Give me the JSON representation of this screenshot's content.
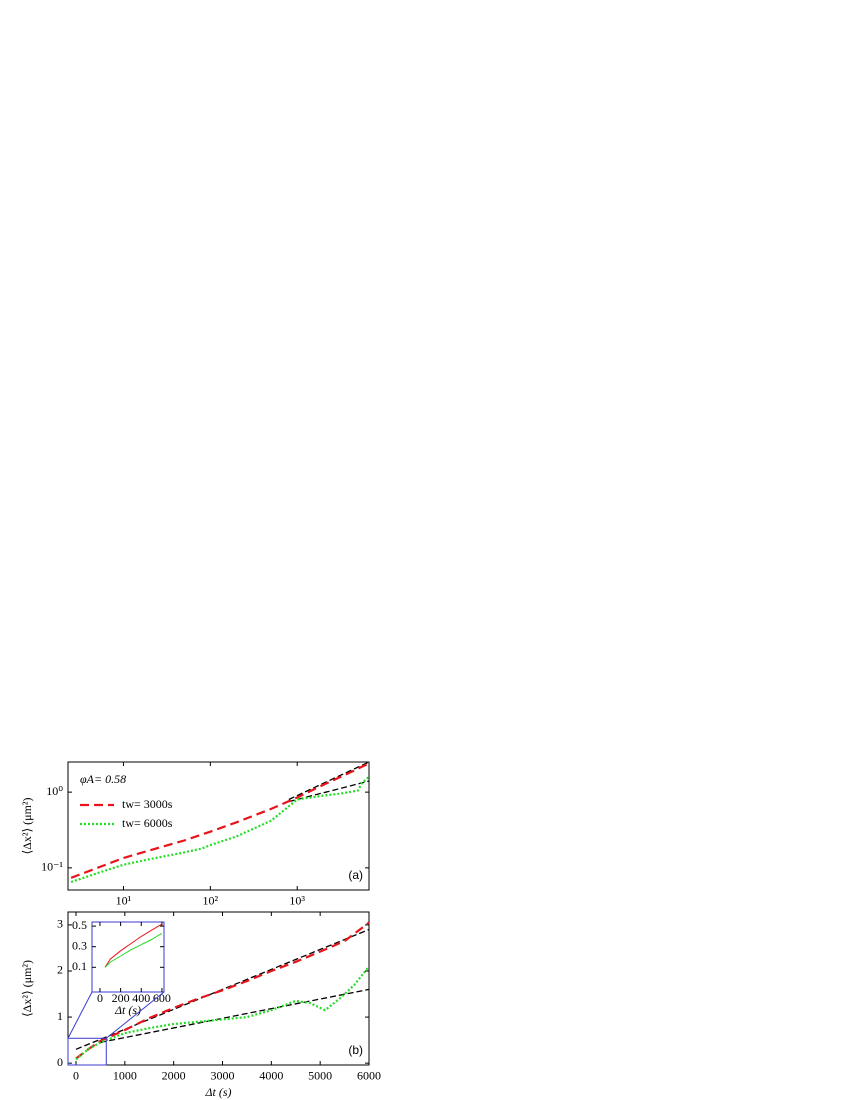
{
  "chart_data": [
    {
      "type": "line",
      "label": "(a)",
      "title": "φA= 0.58",
      "ylabel": "⟨Δx²⟩ (μm²)",
      "xscale": "log",
      "yscale": "log",
      "xlim": [
        2.3,
        6700
      ],
      "ylim": [
        0.051,
        2.5
      ],
      "xticks": [
        {
          "value": 10,
          "label": "10¹"
        },
        {
          "value": 100,
          "label": "10²"
        },
        {
          "value": 1000,
          "label": "10³"
        }
      ],
      "yticks": [
        {
          "value": 0.1,
          "label": "10⁻¹"
        },
        {
          "value": 1,
          "label": "10⁰"
        }
      ],
      "series": [
        {
          "name": "tw= 3000s",
          "color": "#e8141b",
          "dash": "dashed",
          "x": [
            2.5,
            5,
            10,
            20,
            50,
            100,
            200,
            500,
            1000,
            2000,
            4000,
            6700
          ],
          "values": [
            0.074,
            0.1,
            0.135,
            0.17,
            0.23,
            0.3,
            0.4,
            0.6,
            0.85,
            1.25,
            1.8,
            2.4
          ]
        },
        {
          "name": "tw= 6000s",
          "color": "#22dd22",
          "dash": "dotted",
          "x": [
            2.5,
            5,
            10,
            20,
            50,
            80,
            100,
            200,
            500,
            1000,
            2000,
            3000,
            4000,
            5000,
            5500,
            6700
          ],
          "values": [
            0.065,
            0.085,
            0.11,
            0.13,
            0.16,
            0.18,
            0.2,
            0.26,
            0.42,
            0.8,
            0.9,
            0.95,
            1.0,
            1.05,
            1.3,
            1.6
          ]
        }
      ],
      "fits": [
        {
          "color": "#000000",
          "x": [
            800,
            6700
          ],
          "values": [
            0.8,
            2.5
          ]
        },
        {
          "color": "#000000",
          "x": [
            800,
            6700
          ],
          "values": [
            0.75,
            1.4
          ]
        }
      ]
    },
    {
      "type": "line",
      "label": "(b)",
      "xlabel": "Δt  (s)",
      "ylabel": "⟨Δx²⟩ (μm²)",
      "xlim": [
        -164,
        6000
      ],
      "ylim": [
        -0.04,
        3.28
      ],
      "xticks": [
        0,
        1000,
        2000,
        3000,
        4000,
        5000,
        6000
      ],
      "yticks": [
        0,
        1,
        2,
        3
      ],
      "series": [
        {
          "name": "tw= 3000s",
          "color": "#e8141b",
          "dash": "dashed",
          "x": [
            0,
            250,
            500,
            1000,
            1500,
            2000,
            2500,
            3000,
            3500,
            4000,
            4500,
            5000,
            5500,
            6000
          ],
          "values": [
            0.1,
            0.3,
            0.48,
            0.72,
            0.98,
            1.2,
            1.4,
            1.58,
            1.78,
            2.0,
            2.2,
            2.42,
            2.65,
            3.05
          ]
        },
        {
          "name": "tw= 6000s",
          "color": "#22dd22",
          "dash": "dotted",
          "x": [
            0,
            250,
            500,
            1000,
            1500,
            2000,
            2500,
            3000,
            3500,
            4000,
            4500,
            4800,
            5100,
            5400,
            5700,
            6000
          ],
          "values": [
            0.08,
            0.3,
            0.45,
            0.65,
            0.76,
            0.85,
            0.9,
            0.95,
            1.0,
            1.15,
            1.35,
            1.3,
            1.15,
            1.4,
            1.7,
            2.1
          ]
        }
      ],
      "fits": [
        {
          "color": "#000000",
          "x": [
            0,
            6000
          ],
          "values": [
            0.3,
            2.9
          ]
        },
        {
          "color": "#000000",
          "x": [
            500,
            6000
          ],
          "values": [
            0.45,
            1.6
          ]
        }
      ]
    },
    {
      "type": "line",
      "xlabel": "Δt  (s)",
      "xlim": [
        -77,
        620
      ],
      "ylim": [
        -0.14,
        0.54
      ],
      "xticks": [
        0,
        200,
        400,
        600
      ],
      "yticks": [
        0.1,
        0.3,
        0.5
      ],
      "series": [
        {
          "color": "#e8141b",
          "dash": "solid",
          "x": [
            50,
            100,
            200,
            300,
            400,
            500,
            600
          ],
          "values": [
            0.1,
            0.18,
            0.26,
            0.33,
            0.4,
            0.46,
            0.52
          ]
        },
        {
          "color": "#22dd22",
          "dash": "solid",
          "x": [
            50,
            100,
            200,
            300,
            400,
            500,
            600
          ],
          "values": [
            0.1,
            0.15,
            0.21,
            0.27,
            0.32,
            0.37,
            0.43
          ]
        }
      ]
    }
  ]
}
